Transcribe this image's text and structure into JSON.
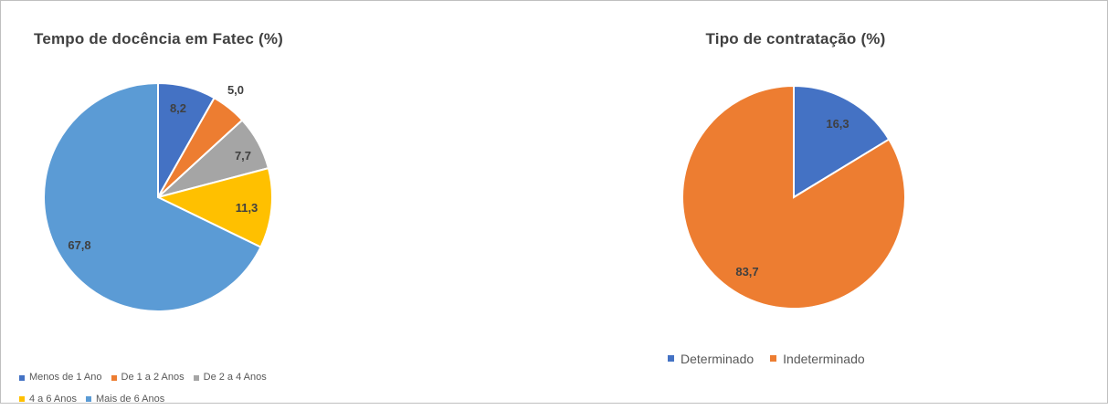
{
  "chart_data": [
    {
      "type": "pie",
      "title": "Tempo de docência em Fatec (%)",
      "categories": [
        "Menos de 1 Ano",
        "De 1 a 2 Anos",
        "De 2 a 4 Anos",
        "4 a 6 Anos",
        "Mais de 6 Anos"
      ],
      "values": [
        8.2,
        5.0,
        7.7,
        11.3,
        67.8
      ],
      "labels": [
        "8,2",
        "5,0",
        "7,7",
        "11,3",
        "67,8"
      ],
      "colors": [
        "#4472C4",
        "#ED7D31",
        "#A5A5A5",
        "#FFC000",
        "#5B9BD5"
      ],
      "legend": "bottom"
    },
    {
      "type": "pie",
      "title": "Tipo de contratação (%)",
      "categories": [
        "Determinado",
        "Indeterminado"
      ],
      "values": [
        16.3,
        83.7
      ],
      "labels": [
        "16,3",
        "83,7"
      ],
      "colors": [
        "#4472C4",
        "#ED7D31"
      ],
      "legend": "bottom"
    }
  ]
}
